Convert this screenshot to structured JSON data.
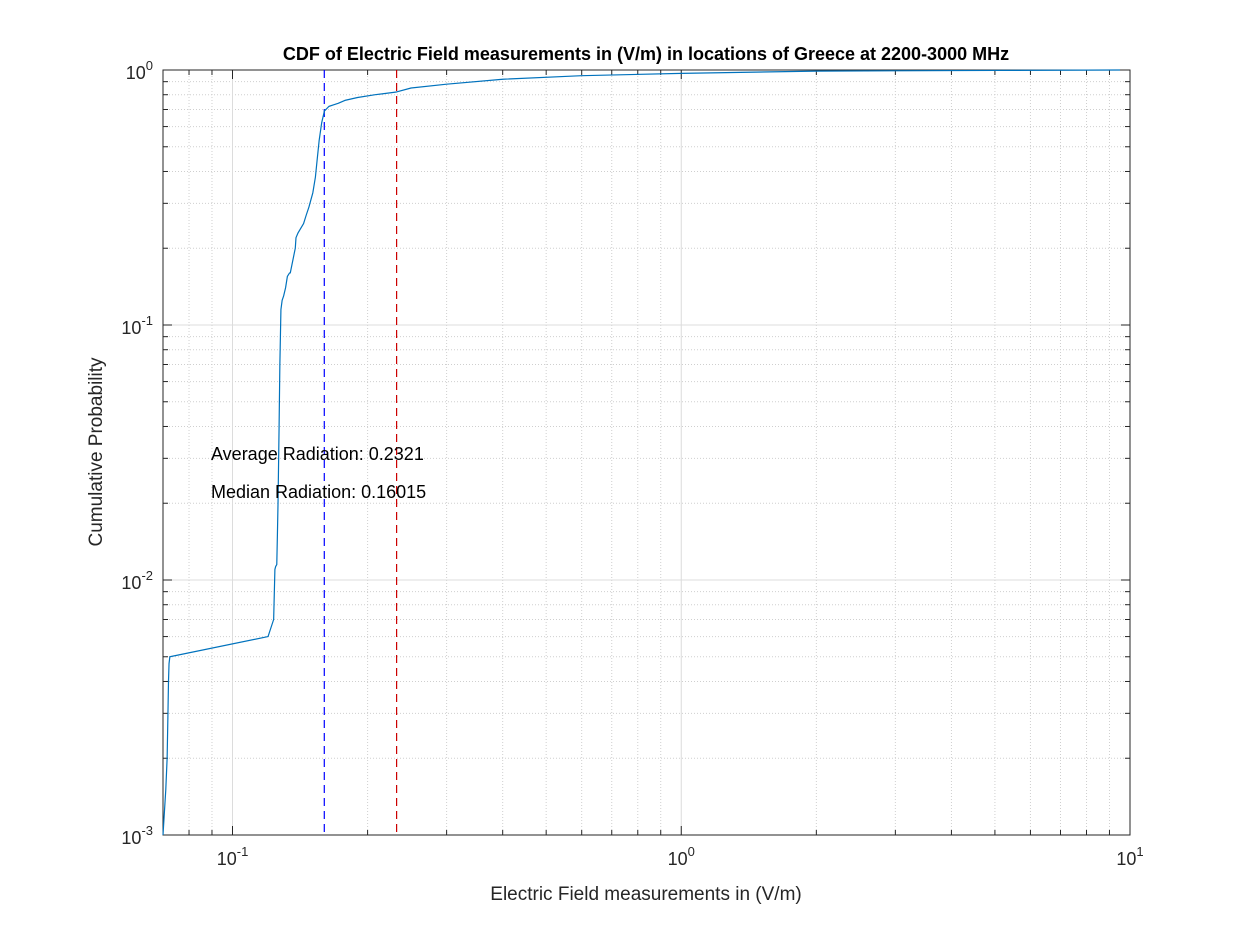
{
  "chart_data": {
    "type": "line",
    "title": "CDF of Electric Field measurements in (V/m) in locations of Greece at 2200-3000 MHz",
    "xlabel": "Electric Field measurements in (V/m)",
    "ylabel": "Cumulative Probability",
    "xscale": "log",
    "yscale": "log",
    "xlim": [
      0.07,
      10
    ],
    "ylim": [
      0.001,
      1
    ],
    "grid": "major and minor",
    "x_ticks": [
      {
        "value": 0.1,
        "base": "10",
        "exp": "-1"
      },
      {
        "value": 1,
        "base": "10",
        "exp": "0"
      },
      {
        "value": 10,
        "base": "10",
        "exp": "1"
      }
    ],
    "y_ticks": [
      {
        "value": 0.001,
        "base": "10",
        "exp": "-3"
      },
      {
        "value": 0.01,
        "base": "10",
        "exp": "-2"
      },
      {
        "value": 0.1,
        "base": "10",
        "exp": "-1"
      },
      {
        "value": 1,
        "base": "10",
        "exp": "0"
      }
    ],
    "series": [
      {
        "color": "#0072BD",
        "x": [
          0.07,
          0.071,
          0.0715,
          0.0718,
          0.072,
          0.0722,
          0.0725,
          0.12,
          0.1235,
          0.1243,
          0.1248,
          0.1255,
          0.1259,
          0.1263,
          0.127,
          0.1275,
          0.1282,
          0.129,
          0.13,
          0.1313,
          0.1325,
          0.134,
          0.1345,
          0.138,
          0.1385,
          0.14,
          0.144,
          0.146,
          0.148,
          0.151,
          0.153,
          0.1545,
          0.156,
          0.158,
          0.1602,
          0.164,
          0.168,
          0.172,
          0.178,
          0.19,
          0.208,
          0.232,
          0.25,
          0.3,
          0.4,
          0.6,
          1.0,
          2.0,
          5.0,
          9.5
        ],
        "y": [
          0.001,
          0.0015,
          0.002,
          0.003,
          0.004,
          0.0047,
          0.005,
          0.006,
          0.007,
          0.011,
          0.0113,
          0.0115,
          0.015,
          0.02,
          0.04,
          0.07,
          0.115,
          0.125,
          0.13,
          0.14,
          0.155,
          0.16,
          0.16,
          0.2,
          0.22,
          0.23,
          0.25,
          0.27,
          0.29,
          0.33,
          0.38,
          0.45,
          0.53,
          0.62,
          0.69,
          0.72,
          0.73,
          0.74,
          0.76,
          0.78,
          0.8,
          0.82,
          0.85,
          0.88,
          0.92,
          0.95,
          0.97,
          0.99,
          0.996,
          1.0
        ]
      }
    ],
    "reference_lines": [
      {
        "x": 0.16015,
        "color": "#0000FF",
        "style": "dashed"
      },
      {
        "x": 0.2321,
        "color": "#CC0000",
        "style": "dashed"
      }
    ],
    "annotations": [
      "Average Radiation: 0.2321",
      "Median Radiation: 0.16015"
    ]
  }
}
